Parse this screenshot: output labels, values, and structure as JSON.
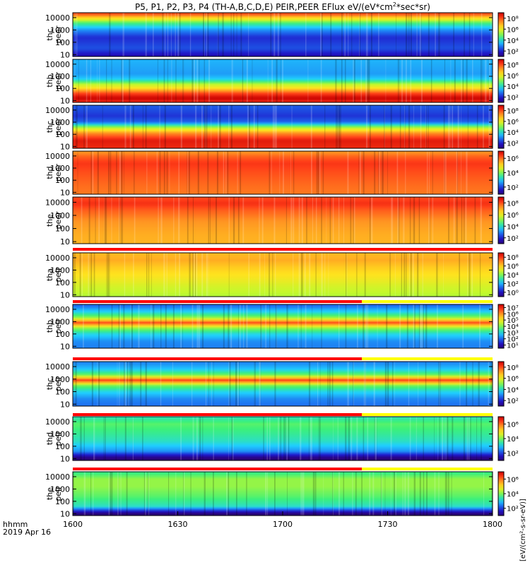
{
  "chart_data": {
    "type": "heatmap",
    "title": "P5, P1, P2, P3, P4 (TH-A,B,C,D,E) PEIR,PEER EFlux eV/(eV*cm²*sec*sr)",
    "title_parts": {
      "main": "P5, P1, P2, P3, P4 (TH-A,B,C,D,E) PEIR,PEER EFlux eV/(eV*cm",
      "sup": "2",
      "tail": "*sec*sr)"
    },
    "x_axis": {
      "label_line1": "hhmm",
      "label_line2": "2019 Apr 16",
      "tick_labels": [
        "1600",
        "1630",
        "1700",
        "1730",
        "1800"
      ],
      "range": [
        "16:00",
        "18:00"
      ]
    },
    "y_axis": {
      "scale": "log",
      "unit": "eV"
    },
    "colorbar_label": "[eV/(cm²-s-sr-eV)]",
    "colorscale": [
      "#2a007a",
      "#1f14c8",
      "#1e6ef0",
      "#1fd0ff",
      "#3cf07a",
      "#c4f82c",
      "#ffe21e",
      "#ff9a22",
      "#ff3c18",
      "#c80000"
    ],
    "panels": [
      {
        "ylabel": [
          "thc",
          "peer"
        ],
        "yticks": [
          "10",
          "100",
          "1000",
          "10000"
        ],
        "ylim": [
          7,
          25000
        ],
        "cbar_ticks": [
          "10⁸",
          "10⁶",
          "10⁴",
          "10²"
        ],
        "cbar_range": [
          1,
          9
        ],
        "profile": [
          [
            0.05,
            0.3
          ],
          [
            0.8,
            1.5
          ],
          [
            1.5,
            2.5
          ],
          [
            2.4,
            2.1
          ],
          [
            3.0,
            3.1
          ],
          [
            3.6,
            4.7
          ],
          [
            4.3,
            8.0
          ]
        ]
      },
      {
        "ylabel": [
          "thb",
          "peer"
        ],
        "yticks": [
          "10",
          "100",
          "1000",
          "10000"
        ],
        "ylim": [
          7,
          25000
        ],
        "cbar_ticks": [
          "10⁸",
          "10⁶",
          "10⁴",
          "10²"
        ],
        "cbar_range": [
          1,
          9
        ],
        "profile": [
          [
            0.9,
            8.4
          ],
          [
            1.2,
            9.0
          ],
          [
            1.6,
            8.0
          ],
          [
            2.0,
            6.4
          ],
          [
            2.4,
            5.2
          ],
          [
            2.8,
            3.6
          ],
          [
            3.2,
            3.2
          ],
          [
            4.3,
            3.4
          ]
        ]
      },
      {
        "ylabel": [
          "thc",
          "peer"
        ],
        "yticks": [
          "10",
          "100",
          "1000",
          "10000"
        ],
        "ylim": [
          7,
          25000
        ],
        "cbar_ticks": [
          "10⁸",
          "10⁶",
          "10⁴",
          "10²"
        ],
        "cbar_range": [
          1,
          9
        ],
        "profile": [
          [
            0.9,
            8.4
          ],
          [
            1.5,
            8.6
          ],
          [
            2.1,
            7.3
          ],
          [
            2.6,
            5.1
          ],
          [
            3.0,
            2.7
          ],
          [
            3.5,
            2.2
          ],
          [
            4.3,
            2.6
          ]
        ]
      },
      {
        "ylabel": [
          "thd",
          "peer"
        ],
        "yticks": [
          "10",
          "100",
          "1000",
          "10000"
        ],
        "ylim": [
          7,
          25000
        ],
        "cbar_ticks": [
          "10⁶",
          "10⁴",
          "10²"
        ],
        "cbar_range": [
          1,
          7
        ],
        "profile": [
          [
            0.9,
            5.9
          ],
          [
            1.6,
            6.0
          ],
          [
            2.6,
            6.2
          ],
          [
            3.4,
            6.4
          ],
          [
            3.9,
            6.1
          ],
          [
            4.3,
            5.7
          ]
        ]
      },
      {
        "ylabel": [
          "the",
          "peer"
        ],
        "yticks": [
          "10",
          "100",
          "1000",
          "10000"
        ],
        "ylim": [
          7,
          25000
        ],
        "cbar_ticks": [
          "10⁸",
          "10⁶",
          "10⁴",
          "10²"
        ],
        "cbar_range": [
          1,
          9
        ],
        "profile": [
          [
            0.9,
            6.9
          ],
          [
            1.6,
            7.0
          ],
          [
            2.6,
            7.3
          ],
          [
            3.4,
            7.8
          ],
          [
            3.9,
            8.3
          ],
          [
            4.3,
            8.0
          ]
        ]
      },
      {
        "ylabel": [
          "tha",
          "peir"
        ],
        "yticks": [
          "10",
          "100",
          "1000",
          "10000"
        ],
        "ylim": [
          7,
          25000
        ],
        "cbar_ticks": [
          "10⁸",
          "10⁶",
          "10⁴",
          "10²",
          "10⁰"
        ],
        "cbar_range": [
          -1,
          9
        ],
        "profile": [
          [
            0.9,
            4.4
          ],
          [
            1.6,
            4.8
          ],
          [
            2.4,
            5.5
          ],
          [
            3.2,
            6.0
          ],
          [
            3.8,
            6.5
          ],
          [
            4.3,
            6.3
          ]
        ]
      },
      {
        "ylabel": [
          "thb",
          "peir"
        ],
        "yticks": [
          "10",
          "100",
          "1000",
          "10000"
        ],
        "ylim": [
          7,
          25000
        ],
        "cbar_ticks": [
          "10⁷",
          "10⁶",
          "10⁵",
          "10⁴",
          "10³",
          "10²",
          "10¹"
        ],
        "cbar_range": [
          0.5,
          7.5
        ],
        "profile": [
          [
            0.9,
            2.2
          ],
          [
            1.4,
            2.3
          ],
          [
            2.0,
            3.0
          ],
          [
            2.5,
            4.2
          ],
          [
            2.9,
            6.7
          ],
          [
            3.3,
            4.2
          ],
          [
            3.8,
            2.9
          ],
          [
            4.3,
            2.0
          ]
        ]
      },
      {
        "ylabel": [
          "thc",
          "peir"
        ],
        "yticks": [
          "10",
          "100",
          "1000",
          "10000"
        ],
        "ylim": [
          7,
          25000
        ],
        "cbar_ticks": [
          "10⁸",
          "10⁶",
          "10⁴",
          "10²"
        ],
        "cbar_range": [
          1,
          9
        ],
        "profile": [
          [
            0.9,
            2.8
          ],
          [
            1.4,
            3.0
          ],
          [
            2.0,
            3.8
          ],
          [
            2.5,
            5.0
          ],
          [
            2.9,
            8.2
          ],
          [
            3.3,
            5.0
          ],
          [
            3.8,
            3.6
          ],
          [
            4.3,
            3.0
          ]
        ]
      },
      {
        "ylabel": [
          "thd",
          "peir"
        ],
        "yticks": [
          "10",
          "100",
          "1000",
          "10000"
        ],
        "ylim": [
          7,
          25000
        ],
        "cbar_ticks": [
          "10⁶",
          "10⁴",
          "10²"
        ],
        "cbar_range": [
          1,
          7
        ],
        "profile": [
          [
            0.9,
            0.6
          ],
          [
            1.6,
            2.6
          ],
          [
            2.4,
            3.3
          ],
          [
            3.2,
            3.6
          ],
          [
            3.8,
            3.8
          ],
          [
            4.3,
            3.4
          ]
        ]
      },
      {
        "ylabel": [
          "the",
          "peir"
        ],
        "yticks": [
          "10",
          "100",
          "1000",
          "10000"
        ],
        "ylim": [
          7,
          25000
        ],
        "cbar_ticks": [
          "10⁶",
          "10⁴",
          "10²"
        ],
        "cbar_range": [
          1,
          7
        ],
        "profile": [
          [
            0.9,
            0.6
          ],
          [
            1.6,
            3.3
          ],
          [
            2.4,
            3.8
          ],
          [
            3.2,
            4.1
          ],
          [
            3.8,
            4.1
          ],
          [
            4.3,
            3.6
          ]
        ]
      }
    ]
  }
}
